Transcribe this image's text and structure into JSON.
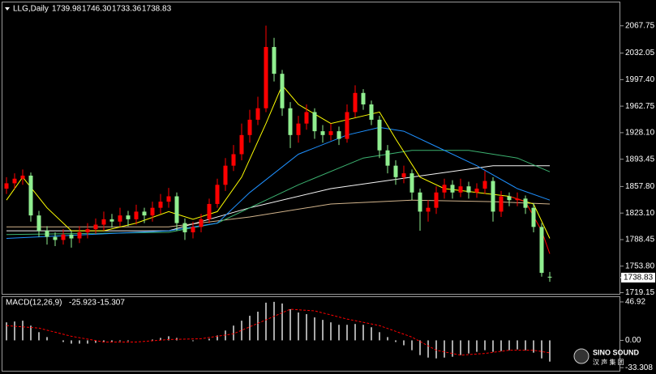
{
  "chart_data": [
    {
      "type": "candlestick",
      "header": {
        "symbol": "LLG,Daily",
        "ohlc_labels": [
          "1739.98",
          "1746.30",
          "1733.36",
          "1738.83"
        ]
      },
      "up_color": "#ff0000",
      "down_color": "#90ee90",
      "xlim": [
        -0.5,
        75.7
      ],
      "ylim": [
        1717.6,
        2098.2
      ],
      "yticks": [
        2067.75,
        2032.05,
        {
          "value": 1997.4,
          "label": "1997.40"
        },
        1962.75,
        {
          "value": 1928.1,
          "label": "1928.10"
        },
        1893.45,
        {
          "value": 1857.8,
          "label": "1857.80"
        },
        {
          "value": 1823.1,
          "label": "1823.10"
        },
        1788.45,
        {
          "value": 1753.8,
          "label": "1753.80"
        },
        1719.15
      ],
      "open": [
        1855,
        1862,
        1868,
        1872,
        1820,
        1800,
        1792,
        1788,
        1795,
        1790,
        1798,
        1802,
        1808,
        1815,
        1812,
        1820,
        1815,
        1825,
        1820,
        1830,
        1838,
        1845,
        1810,
        1798,
        1805,
        1815,
        1835,
        1860,
        1885,
        1900,
        1925,
        1945,
        1960,
        2040,
        2005,
        1960,
        1925,
        1940,
        1955,
        1930,
        1925,
        1930,
        1920,
        1955,
        1980,
        1965,
        1945,
        1905,
        1885,
        1870,
        1875,
        1850,
        1825,
        1830,
        1850,
        1860,
        1850,
        1858,
        1850,
        1855,
        1865,
        1825,
        1845,
        1840,
        1842,
        1830,
        1805,
        1739.98
      ],
      "high": [
        1870,
        1875,
        1880,
        1876,
        1826,
        1806,
        1798,
        1802,
        1800,
        1806,
        1810,
        1816,
        1825,
        1822,
        1830,
        1826,
        1834,
        1830,
        1838,
        1848,
        1856,
        1850,
        1816,
        1812,
        1822,
        1842,
        1868,
        1895,
        1912,
        1940,
        1958,
        1975,
        2068,
        2052,
        2010,
        1968,
        1950,
        1965,
        1960,
        1938,
        1940,
        1936,
        1965,
        1990,
        1985,
        1970,
        1950,
        1912,
        1892,
        1885,
        1880,
        1855,
        1840,
        1858,
        1868,
        1866,
        1868,
        1864,
        1862,
        1878,
        1870,
        1852,
        1850,
        1850,
        1846,
        1836,
        1810,
        1746.3
      ],
      "low": [
        1848,
        1855,
        1860,
        1812,
        1792,
        1782,
        1780,
        1782,
        1778,
        1784,
        1790,
        1796,
        1800,
        1804,
        1806,
        1806,
        1808,
        1810,
        1812,
        1822,
        1830,
        1800,
        1788,
        1790,
        1798,
        1810,
        1830,
        1852,
        1878,
        1892,
        1915,
        1938,
        1955,
        1995,
        1950,
        1908,
        1915,
        1932,
        1920,
        1915,
        1918,
        1912,
        1915,
        1948,
        1958,
        1938,
        1895,
        1875,
        1860,
        1862,
        1840,
        1800,
        1812,
        1822,
        1842,
        1842,
        1844,
        1842,
        1843,
        1848,
        1812,
        1818,
        1832,
        1832,
        1822,
        1798,
        1740,
        1733.36
      ],
      "close": [
        1862,
        1868,
        1872,
        1820,
        1800,
        1792,
        1788,
        1795,
        1790,
        1798,
        1802,
        1808,
        1815,
        1812,
        1820,
        1815,
        1825,
        1820,
        1830,
        1838,
        1845,
        1810,
        1798,
        1805,
        1815,
        1835,
        1860,
        1885,
        1900,
        1925,
        1945,
        1960,
        2040,
        2005,
        1960,
        1925,
        1940,
        1955,
        1930,
        1925,
        1930,
        1920,
        1955,
        1980,
        1965,
        1945,
        1905,
        1885,
        1870,
        1875,
        1850,
        1825,
        1830,
        1850,
        1860,
        1850,
        1858,
        1850,
        1855,
        1865,
        1825,
        1845,
        1840,
        1842,
        1830,
        1805,
        1745,
        1738.83
      ],
      "series": [
        {
          "color": "#d2b48c",
          "x": [
            0,
            20,
            30,
            40,
            50,
            60,
            67
          ],
          "values": [
            1805,
            1805,
            1818,
            1835,
            1840,
            1838,
            1835
          ]
        },
        {
          "color": "#f5f5f5",
          "x": [
            0,
            20,
            30,
            40,
            50,
            60,
            67
          ],
          "values": [
            1800,
            1800,
            1830,
            1855,
            1870,
            1885,
            1885
          ]
        },
        {
          "color": "#3cb371",
          "x": [
            0,
            20,
            26,
            36,
            44,
            50,
            57,
            63,
            67
          ],
          "values": [
            1795,
            1798,
            1810,
            1860,
            1895,
            1905,
            1905,
            1895,
            1877
          ]
        },
        {
          "color": "#1e90ff",
          "x": [
            0,
            10,
            20,
            26,
            30,
            36,
            42,
            46,
            49,
            53,
            58,
            63,
            67
          ],
          "values": [
            1790,
            1795,
            1800,
            1810,
            1850,
            1900,
            1925,
            1935,
            1930,
            1910,
            1885,
            1855,
            1840
          ]
        },
        {
          "color": "#ffff00",
          "x": [
            0,
            2,
            5,
            8,
            12,
            16,
            20,
            23,
            26,
            29,
            32,
            34,
            36,
            40,
            44,
            46,
            48,
            51,
            54,
            58,
            62,
            65,
            67
          ],
          "values": [
            1840,
            1870,
            1830,
            1800,
            1800,
            1810,
            1825,
            1815,
            1825,
            1870,
            1940,
            1990,
            1965,
            1940,
            1950,
            1955,
            1920,
            1870,
            1855,
            1850,
            1845,
            1835,
            1790
          ]
        },
        {
          "color": "#ff0000",
          "x": [
            62,
            64,
            66,
            67
          ],
          "values": [
            1845,
            1838,
            1800,
            1770
          ]
        }
      ]
    },
    {
      "type": "macd",
      "label": "MACD(12,26,9)",
      "xlim": [
        -0.5,
        75.7
      ],
      "ylim": [
        -37.1,
        52.8
      ],
      "yticks": [
        46.92,
        {
          "value": 0,
          "label": "0.00"
        },
        -33.308
      ],
      "values": [
        22,
        23,
        24,
        18,
        10,
        4,
        0,
        -2,
        -4,
        -4,
        -4,
        -3,
        -2,
        -2,
        -1,
        -1,
        0,
        0,
        1,
        3,
        5,
        3,
        0,
        -1,
        0,
        2,
        6,
        12,
        18,
        24,
        30,
        35,
        46,
        47,
        45,
        38,
        34,
        32,
        28,
        25,
        22,
        19,
        19,
        20,
        19,
        16,
        10,
        4,
        -2,
        -6,
        -12,
        -18,
        -21,
        -22,
        -21,
        -20,
        -18,
        -16,
        -14,
        -12,
        -14,
        -13,
        -12,
        -11,
        -12,
        -15,
        -22,
        -25.923
      ],
      "color": "#e0e0e0",
      "signal": {
        "color": "#ff0000",
        "x": [
          0,
          4,
          8,
          12,
          16,
          20,
          24,
          28,
          32,
          35,
          38,
          42,
          46,
          50,
          53,
          56,
          59,
          62,
          65,
          67
        ],
        "values": [
          18,
          15,
          5,
          -2,
          -2,
          1,
          2,
          8,
          25,
          38,
          36,
          26,
          18,
          4,
          -12,
          -18,
          -16,
          -12,
          -12,
          -15.307
        ]
      }
    }
  ],
  "logo": {
    "brand": "SINO SOUND",
    "chinese": "汉 声 集 团"
  }
}
